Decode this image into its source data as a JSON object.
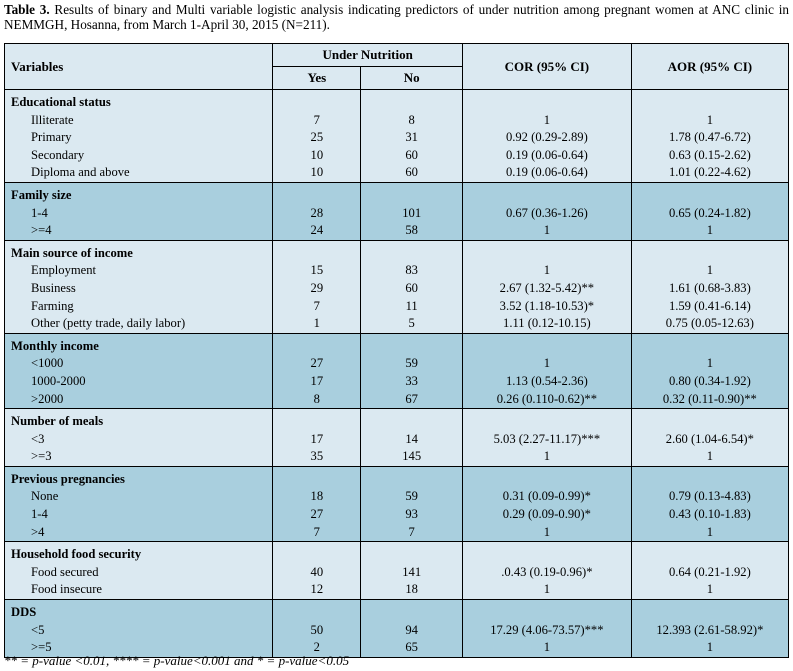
{
  "caption": {
    "label": "Table 3.",
    "text": " Results of binary and Multi variable logistic analysis indicating predictors of under nutrition among pregnant women at ANC clinic in NEMMGH, Hosanna, from March 1-April 30, 2015 (N=211)."
  },
  "header": {
    "variables": "Variables",
    "under_nutrition": "Under Nutrition",
    "yes": "Yes",
    "no": "No",
    "cor": "COR (95% CI)",
    "aor": "AOR (95% CI)"
  },
  "groups": [
    {
      "title": "Educational status",
      "shade": "light",
      "rows": [
        {
          "label": "Illiterate",
          "yes": "7",
          "no": "8",
          "cor": "1",
          "aor": "1"
        },
        {
          "label": "Primary",
          "yes": "25",
          "no": "31",
          "cor": "0.92 (0.29-2.89)",
          "aor": "1.78 (0.47-6.72)"
        },
        {
          "label": "Secondary",
          "yes": "10",
          "no": "60",
          "cor": "0.19 (0.06-0.64)",
          "aor": "0.63 (0.15-2.62)"
        },
        {
          "label": "Diploma and above",
          "yes": "10",
          "no": "60",
          "cor": "0.19 (0.06-0.64)",
          "aor": "1.01 (0.22-4.62)"
        }
      ]
    },
    {
      "title": "Family size",
      "shade": "dark",
      "rows": [
        {
          "label": "1-4",
          "yes": "28",
          "no": "101",
          "cor": "0.67 (0.36-1.26)",
          "aor": "0.65 (0.24-1.82)"
        },
        {
          "label": ">=4",
          "yes": "24",
          "no": "58",
          "cor": "1",
          "aor": "1"
        }
      ]
    },
    {
      "title": "Main source of  income",
      "shade": "light",
      "rows": [
        {
          "label": "Employment",
          "yes": "15",
          "no": "83",
          "cor": "1",
          "aor": "1"
        },
        {
          "label": "Business",
          "yes": "29",
          "no": "60",
          "cor": "2.67 (1.32-5.42)**",
          "aor": "1.61 (0.68-3.83)"
        },
        {
          "label": "Farming",
          "yes": "7",
          "no": "11",
          "cor": "3.52 (1.18-10.53)*",
          "aor": "1.59 (0.41-6.14)"
        },
        {
          "label": "Other (petty trade, daily labor)",
          "yes": "1",
          "no": "5",
          "cor": "1.11 (0.12-10.15)",
          "aor": "0.75 (0.05-12.63)"
        }
      ]
    },
    {
      "title": "Monthly  income",
      "shade": "dark",
      "rows": [
        {
          "label": "<1000",
          "yes": "27",
          "no": "59",
          "cor": "1",
          "aor": "1"
        },
        {
          "label": "1000-2000",
          "yes": "17",
          "no": "33",
          "cor": "1.13 (0.54-2.36)",
          "aor": "0.80 (0.34-1.92)"
        },
        {
          "label": ">2000",
          "yes": "8",
          "no": "67",
          "cor": "0.26 (0.110-0.62)**",
          "aor": "0.32 (0.11-0.90)**"
        }
      ]
    },
    {
      "title": "Number of meals",
      "shade": "light",
      "rows": [
        {
          "label": "<3",
          "yes": "17",
          "no": "14",
          "cor": "5.03 (2.27-11.17)***",
          "aor": "2.60 (1.04-6.54)*"
        },
        {
          "label": ">=3",
          "yes": "35",
          "no": "145",
          "cor": "1",
          "aor": "1"
        }
      ]
    },
    {
      "title": "Previous pregnancies",
      "shade": "dark",
      "rows": [
        {
          "label": "None",
          "yes": "18",
          "no": "59",
          "cor": "0.31 (0.09-0.99)*",
          "aor": "0.79 (0.13-4.83)"
        },
        {
          "label": "1-4",
          "yes": "27",
          "no": "93",
          "cor": "0.29 (0.09-0.90)*",
          "aor": "0.43 (0.10-1.83)"
        },
        {
          "label": ">4",
          "yes": "7",
          "no": "7",
          "cor": "1",
          "aor": "1"
        }
      ]
    },
    {
      "title": "Household food security",
      "shade": "light",
      "rows": [
        {
          "label": "Food secured",
          "yes": "40",
          "no": "141",
          "cor": ".0.43 (0.19-0.96)*",
          "aor": "0.64 (0.21-1.92)"
        },
        {
          "label": "Food insecure",
          "yes": "12",
          "no": "18",
          "cor": "1",
          "aor": "1"
        }
      ]
    },
    {
      "title": "DDS",
      "shade": "dark",
      "rows": [
        {
          "label": "<5",
          "yes": "50",
          "no": "94",
          "cor": "17.29 (4.06-73.57)***",
          "aor": "12.393 (2.61-58.92)*"
        },
        {
          "label": ">=5",
          "yes": "2",
          "no": "65",
          "cor": "1",
          "aor": "1"
        }
      ]
    }
  ],
  "footnote": "** = p-value <0.01, **** = p-value<0.001 and * = p-value<0.05"
}
